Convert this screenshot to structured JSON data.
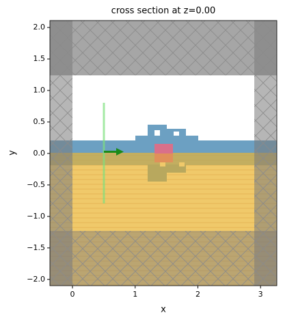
{
  "chart_data": {
    "type": "cross-section",
    "title": "cross section at z=0.00",
    "x_label": "x",
    "y_label": "y",
    "xlim": [
      -0.36,
      3.26
    ],
    "ylim": [
      -2.1,
      2.11
    ],
    "xticks": [
      0,
      1,
      2,
      3
    ],
    "yticks": [
      {
        "value": -2,
        "label": "−2.0"
      },
      {
        "value": -1.5,
        "label": "−1.5"
      },
      {
        "value": -1,
        "label": "−1.0"
      },
      {
        "value": -0.5,
        "label": "−0.5"
      },
      {
        "value": 0,
        "label": "0.0"
      },
      0.5,
      {
        "value": 1,
        "label": "1.0"
      },
      1.5,
      {
        "value": 2,
        "label": "2.0"
      }
    ]
  }
}
